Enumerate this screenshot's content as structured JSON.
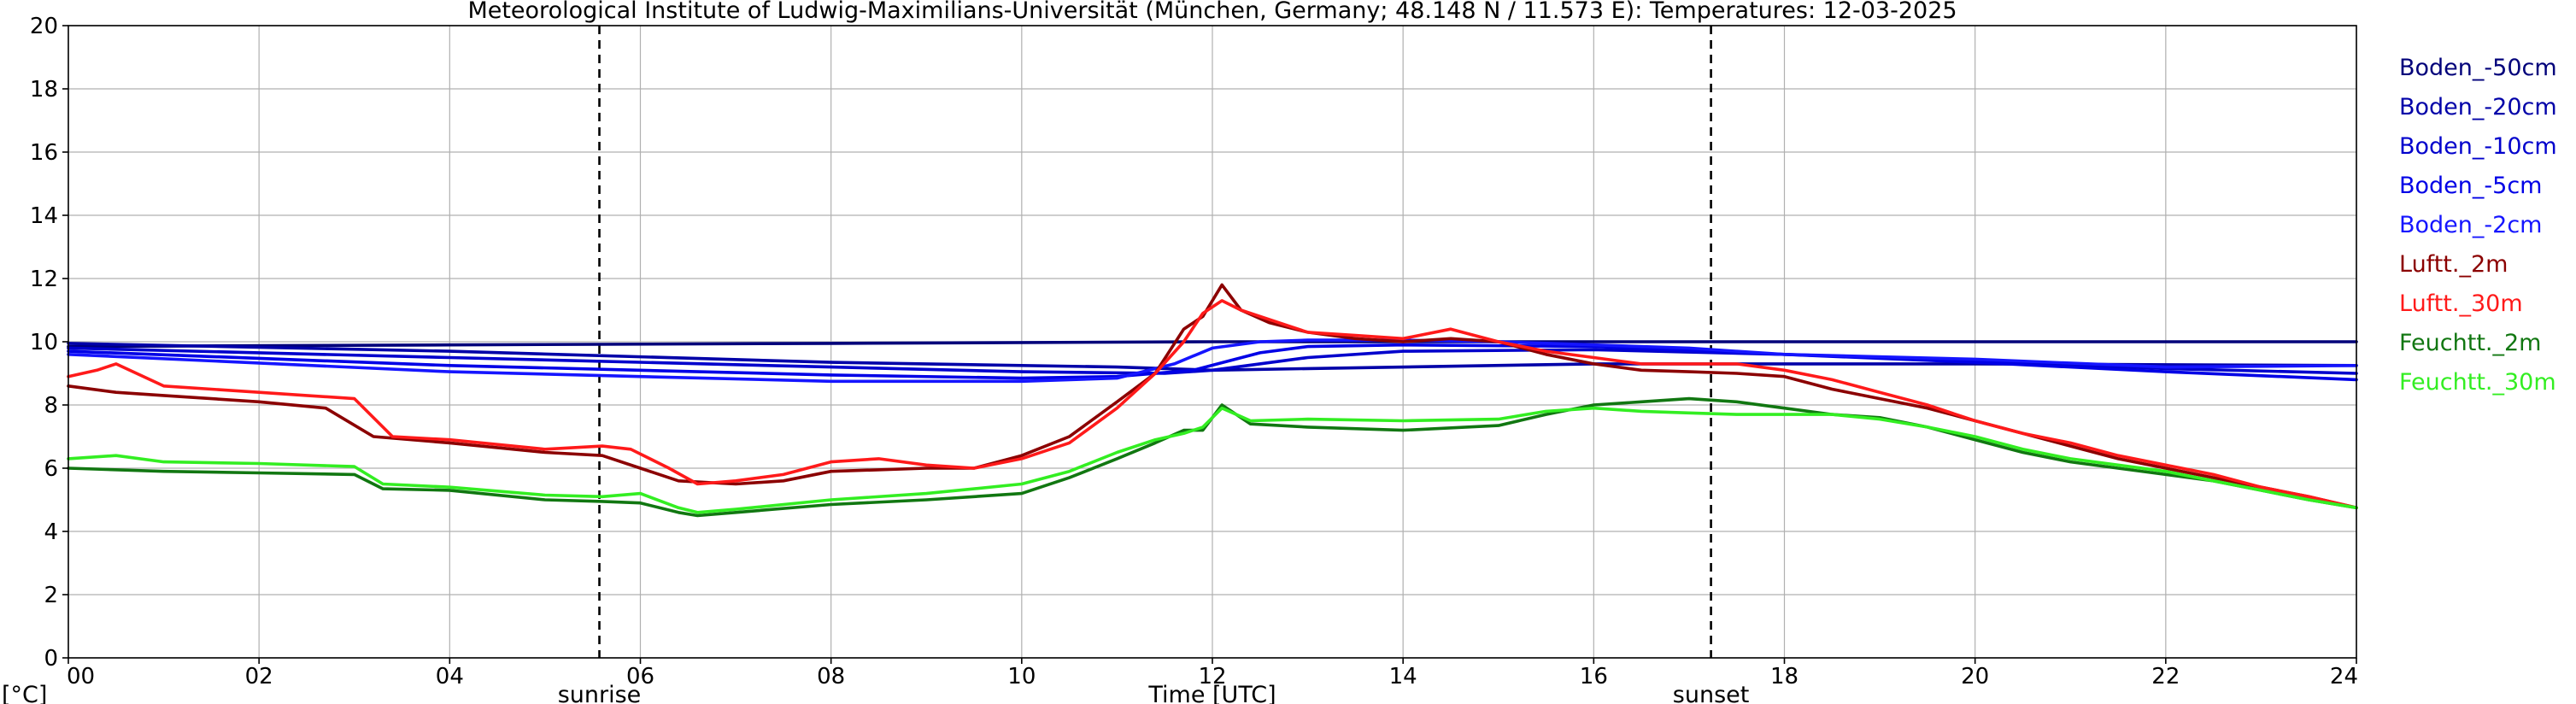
{
  "chart_data": {
    "type": "line",
    "title": "Meteorological Institute of Ludwig-Maximilians-Universität (München, Germany; 48.148 N / 11.573 E):  Temperatures: 12-03-2025",
    "xlabel": "Time [UTC]",
    "ylabel": "[°C]",
    "xlim": [
      0,
      24
    ],
    "ylim": [
      0,
      20
    ],
    "x_ticks": [
      0,
      2,
      4,
      6,
      8,
      10,
      12,
      14,
      16,
      18,
      20,
      22,
      24
    ],
    "x_tick_labels": [
      "00",
      "02",
      "04",
      "06",
      "08",
      "10",
      "12",
      "14",
      "16",
      "18",
      "20",
      "22",
      "24"
    ],
    "y_ticks": [
      0,
      2,
      4,
      6,
      8,
      10,
      12,
      14,
      16,
      18,
      20
    ],
    "y_tick_labels": [
      "0",
      "2",
      "4",
      "6",
      "8",
      "10",
      "12",
      "14",
      "16",
      "18",
      "20"
    ],
    "grid": true,
    "legend_position": "right",
    "events": [
      {
        "label": "sunrise",
        "x": 5.57
      },
      {
        "label": "sunset",
        "x": 17.23
      }
    ],
    "series": [
      {
        "name": "Boden_-50cm",
        "color": "#00007a",
        "x": [
          0,
          4,
          8,
          12,
          16,
          20,
          24
        ],
        "y": [
          9.85,
          9.9,
          9.95,
          10.0,
          10.0,
          10.0,
          10.0
        ]
      },
      {
        "name": "Boden_-20cm",
        "color": "#0000a8",
        "x": [
          0,
          4,
          8,
          11,
          12,
          13,
          16,
          20,
          24
        ],
        "y": [
          9.95,
          9.7,
          9.35,
          9.2,
          9.1,
          9.15,
          9.3,
          9.3,
          9.25
        ]
      },
      {
        "name": "Boden_-10cm",
        "color": "#0000cc",
        "x": [
          0,
          4,
          8,
          10,
          11.5,
          12,
          13,
          14,
          16,
          18,
          20,
          22,
          24
        ],
        "y": [
          9.8,
          9.5,
          9.2,
          9.05,
          9.0,
          9.1,
          9.5,
          9.7,
          9.75,
          9.6,
          9.4,
          9.15,
          9.0
        ]
      },
      {
        "name": "Boden_-5cm",
        "color": "#0000e6",
        "x": [
          0,
          4,
          8,
          10,
          11,
          11.8,
          12.5,
          13,
          14,
          16,
          18,
          20,
          22,
          24
        ],
        "y": [
          9.7,
          9.25,
          8.95,
          8.85,
          8.9,
          9.1,
          9.65,
          9.85,
          9.9,
          9.85,
          9.6,
          9.35,
          9.05,
          8.8
        ]
      },
      {
        "name": "Boden_-2cm",
        "color": "#1515ff",
        "x": [
          0,
          4,
          8,
          10,
          11,
          11.6,
          12,
          12.5,
          13,
          14,
          15,
          16,
          17,
          18,
          20,
          22,
          24
        ],
        "y": [
          9.6,
          9.05,
          8.75,
          8.75,
          8.85,
          9.3,
          9.8,
          10.0,
          10.05,
          10.05,
          10.0,
          9.9,
          9.8,
          9.6,
          9.45,
          9.2,
          9.25
        ]
      },
      {
        "name": "Luftt._2m",
        "color": "#8b0000",
        "x": [
          0,
          0.5,
          1,
          2,
          2.7,
          3.2,
          4,
          5,
          5.6,
          6,
          6.4,
          7,
          7.5,
          8,
          9,
          9.5,
          10,
          10.5,
          11,
          11.4,
          11.7,
          11.9,
          12.1,
          12.3,
          12.6,
          13,
          13.5,
          14,
          14.5,
          15,
          15.5,
          16,
          16.5,
          17,
          17.5,
          18,
          18.5,
          19,
          19.5,
          20,
          20.5,
          21,
          21.5,
          22,
          22.5,
          23,
          23.5,
          24
        ],
        "y": [
          8.6,
          8.4,
          8.3,
          8.1,
          7.9,
          7.0,
          6.8,
          6.5,
          6.4,
          6.0,
          5.6,
          5.5,
          5.6,
          5.9,
          6.0,
          6.0,
          6.4,
          7.0,
          8.1,
          9.0,
          10.4,
          10.8,
          11.8,
          11.0,
          10.6,
          10.3,
          10.1,
          10.0,
          10.1,
          10.0,
          9.6,
          9.3,
          9.1,
          9.05,
          9.0,
          8.9,
          8.5,
          8.2,
          7.9,
          7.5,
          7.1,
          6.7,
          6.3,
          6.0,
          5.7,
          5.4,
          5.1,
          4.75
        ]
      },
      {
        "name": "Luftt._30m",
        "color": "#ff1a1a",
        "x": [
          0,
          0.3,
          0.5,
          1,
          2,
          2.5,
          3,
          3.4,
          4,
          5,
          5.6,
          5.9,
          6.3,
          6.6,
          7,
          7.5,
          8,
          8.5,
          9,
          9.5,
          10,
          10.5,
          11,
          11.4,
          11.7,
          11.9,
          12.1,
          12.3,
          12.6,
          13,
          13.5,
          14,
          14.5,
          15,
          15.5,
          16,
          16.5,
          17,
          17.5,
          18,
          18.5,
          19,
          19.5,
          20,
          20.5,
          21,
          21.5,
          22,
          22.5,
          23,
          23.5,
          24
        ],
        "y": [
          8.9,
          9.1,
          9.3,
          8.6,
          8.4,
          8.3,
          8.2,
          7.0,
          6.9,
          6.6,
          6.7,
          6.6,
          6.0,
          5.5,
          5.6,
          5.8,
          6.2,
          6.3,
          6.1,
          6.0,
          6.3,
          6.8,
          7.9,
          9.0,
          10.0,
          10.9,
          11.3,
          11.0,
          10.7,
          10.3,
          10.2,
          10.1,
          10.4,
          10.0,
          9.7,
          9.5,
          9.3,
          9.3,
          9.3,
          9.1,
          8.8,
          8.4,
          8.0,
          7.5,
          7.1,
          6.8,
          6.4,
          6.1,
          5.8,
          5.4,
          5.1,
          4.75
        ]
      },
      {
        "name": "Feuchtt._2m",
        "color": "#117711",
        "x": [
          0,
          1,
          2,
          3,
          3.3,
          4,
          5,
          5.6,
          6,
          6.4,
          6.6,
          7,
          8,
          9,
          10,
          10.5,
          11,
          11.4,
          11.7,
          11.9,
          12.1,
          12.4,
          13,
          14,
          15,
          15.5,
          16,
          16.5,
          17,
          17.5,
          18,
          18.5,
          19,
          19.5,
          20,
          20.5,
          21,
          21.5,
          22,
          22.5,
          23,
          23.5,
          24
        ],
        "y": [
          6.0,
          5.9,
          5.85,
          5.8,
          5.35,
          5.3,
          5.0,
          4.95,
          4.9,
          4.6,
          4.5,
          4.6,
          4.85,
          5.0,
          5.2,
          5.7,
          6.3,
          6.8,
          7.2,
          7.2,
          8.0,
          7.4,
          7.3,
          7.2,
          7.35,
          7.7,
          8.0,
          8.1,
          8.2,
          8.1,
          7.9,
          7.7,
          7.6,
          7.3,
          6.9,
          6.5,
          6.2,
          6.0,
          5.8,
          5.6,
          5.3,
          5.0,
          4.75
        ]
      },
      {
        "name": "Feuchtt._30m",
        "color": "#33ee22",
        "x": [
          0,
          0.5,
          1,
          2,
          3,
          3.3,
          4,
          5,
          5.6,
          6,
          6.4,
          6.6,
          7,
          8,
          9,
          10,
          10.5,
          11,
          11.4,
          11.7,
          11.9,
          12.1,
          12.4,
          13,
          14,
          15,
          15.5,
          16,
          16.5,
          17,
          17.5,
          18,
          18.5,
          19,
          19.5,
          20,
          20.5,
          21,
          21.5,
          22,
          22.5,
          23,
          23.5,
          24
        ],
        "y": [
          6.3,
          6.4,
          6.2,
          6.15,
          6.05,
          5.5,
          5.4,
          5.15,
          5.1,
          5.2,
          4.75,
          4.6,
          4.7,
          5.0,
          5.2,
          5.5,
          5.9,
          6.5,
          6.9,
          7.1,
          7.3,
          7.9,
          7.5,
          7.55,
          7.5,
          7.55,
          7.8,
          7.9,
          7.8,
          7.75,
          7.7,
          7.7,
          7.7,
          7.55,
          7.3,
          7.0,
          6.6,
          6.3,
          6.1,
          5.9,
          5.6,
          5.3,
          5.0,
          4.75
        ]
      }
    ]
  }
}
